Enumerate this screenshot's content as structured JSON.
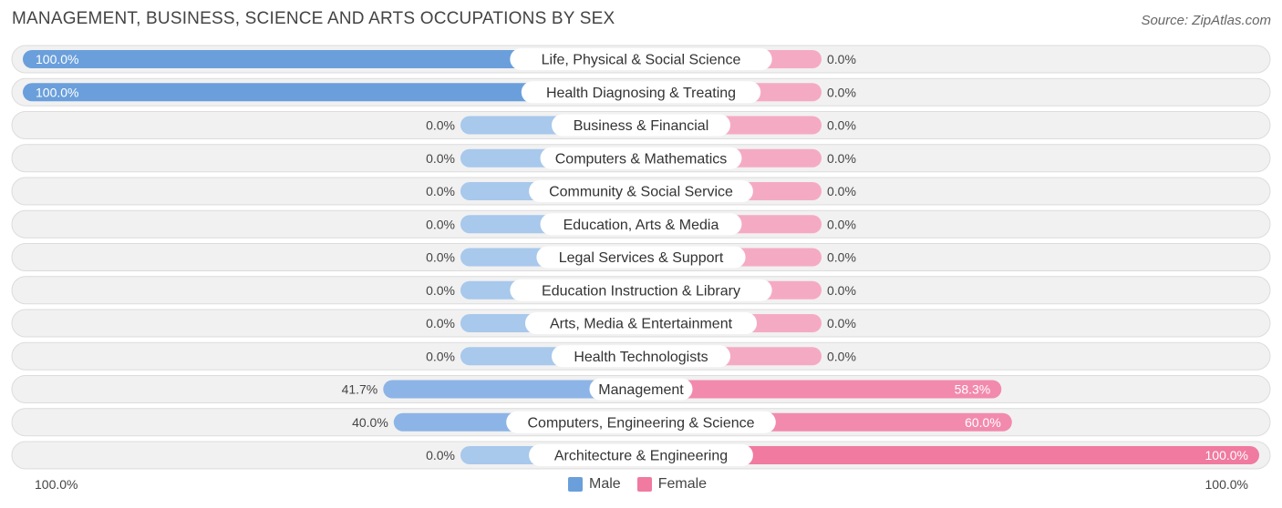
{
  "title": "MANAGEMENT, BUSINESS, SCIENCE AND ARTS OCCUPATIONS BY SEX",
  "source": "Source: ZipAtlas.com",
  "axis": {
    "left_label": "100.0%",
    "right_label": "100.0%"
  },
  "legend": [
    {
      "label": "Male",
      "color": "#6a9fdb"
    },
    {
      "label": "Female",
      "color": "#f07aa0"
    }
  ],
  "colors": {
    "male_strong": "#6a9fdb",
    "male_light": "#a8c8ec",
    "female_strong": "#f07aa0",
    "female_light": "#f5aac3",
    "row_bg": "#f1f1f1",
    "row_border": "#dcdcdc"
  },
  "chart_data": {
    "type": "bar",
    "orientation": "horizontal-diverging",
    "title": "MANAGEMENT, BUSINESS, SCIENCE AND ARTS OCCUPATIONS BY SEX",
    "categories": [
      "Life, Physical & Social Science",
      "Health Diagnosing & Treating",
      "Business & Financial",
      "Computers & Mathematics",
      "Community & Social Service",
      "Education, Arts & Media",
      "Legal Services & Support",
      "Education Instruction & Library",
      "Arts, Media & Entertainment",
      "Health Technologists",
      "Management",
      "Computers, Engineering & Science",
      "Architecture & Engineering"
    ],
    "series": [
      {
        "name": "Male",
        "values": [
          100.0,
          100.0,
          0.0,
          0.0,
          0.0,
          0.0,
          0.0,
          0.0,
          0.0,
          0.0,
          41.7,
          40.0,
          0.0
        ],
        "labels": [
          "100.0%",
          "100.0%",
          "0.0%",
          "0.0%",
          "0.0%",
          "0.0%",
          "0.0%",
          "0.0%",
          "0.0%",
          "0.0%",
          "41.7%",
          "40.0%",
          "0.0%"
        ]
      },
      {
        "name": "Female",
        "values": [
          0.0,
          0.0,
          0.0,
          0.0,
          0.0,
          0.0,
          0.0,
          0.0,
          0.0,
          0.0,
          58.3,
          60.0,
          100.0
        ],
        "labels": [
          "0.0%",
          "0.0%",
          "0.0%",
          "0.0%",
          "0.0%",
          "0.0%",
          "0.0%",
          "0.0%",
          "0.0%",
          "0.0%",
          "58.3%",
          "60.0%",
          "100.0%"
        ]
      }
    ],
    "xlim": [
      -100,
      100
    ],
    "legend_position": "bottom-center"
  }
}
